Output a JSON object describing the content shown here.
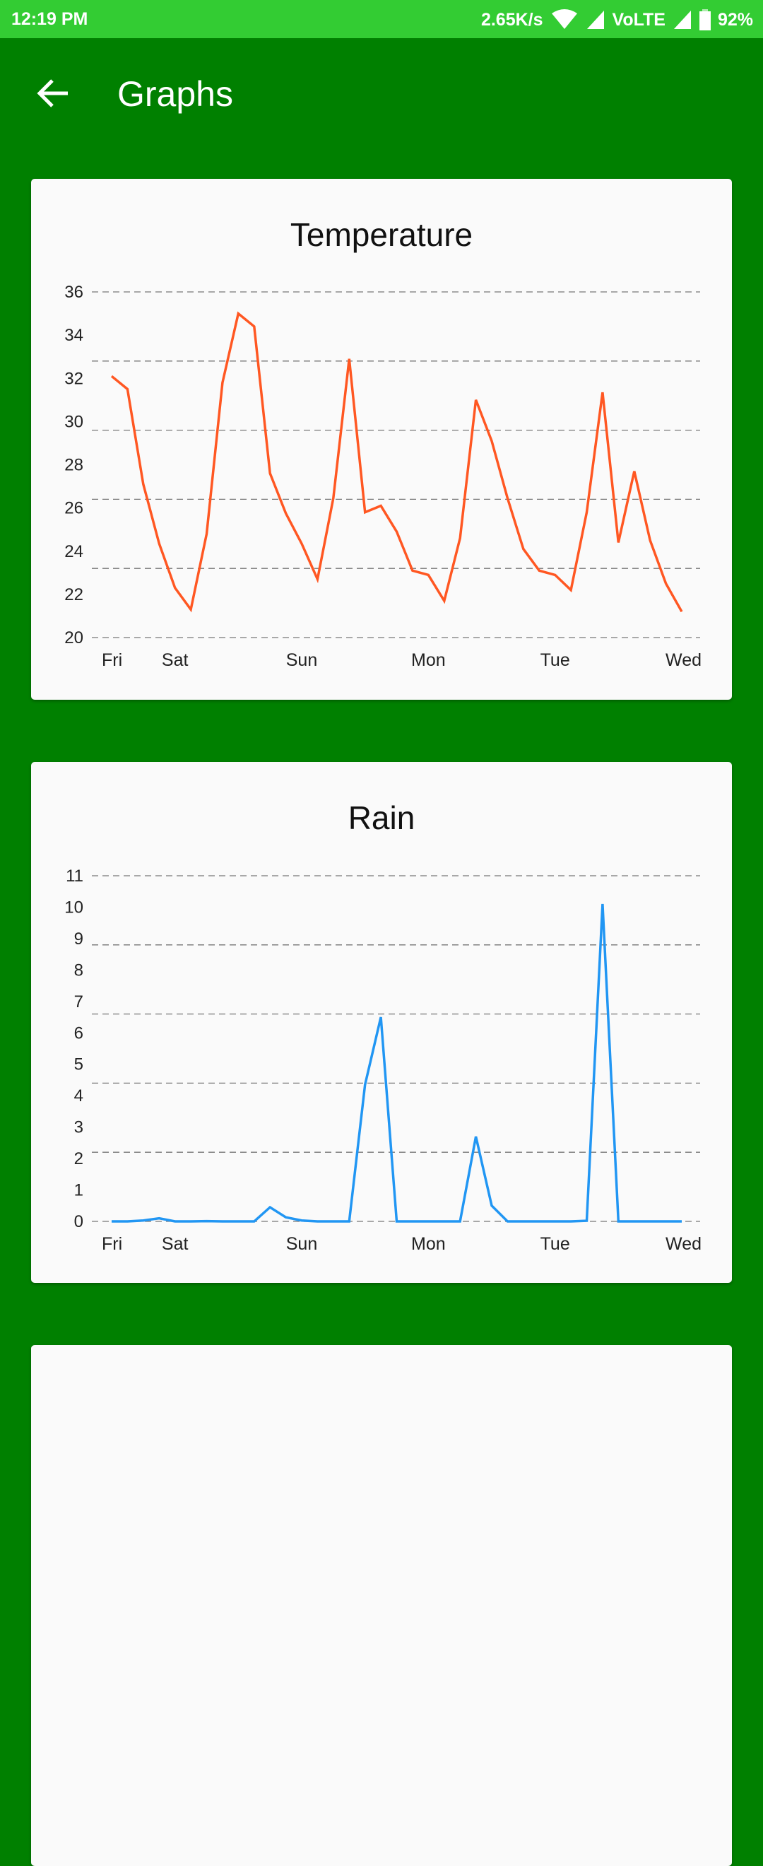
{
  "status_bar": {
    "time": "12:19 PM",
    "speed": "2.65K/s",
    "network": "VoLTE",
    "battery": "92%"
  },
  "app_bar": {
    "title": "Graphs",
    "back_icon": "arrow-back-icon"
  },
  "colors": {
    "status": "#33cc33",
    "appbar": "#008000",
    "temperature_line": "#ff5722",
    "rain_line": "#2196f3"
  },
  "chart_data": [
    {
      "type": "line",
      "title": "Temperature",
      "ylim": [
        20,
        36
      ],
      "yticks": [
        "20",
        "22",
        "24",
        "26",
        "28",
        "30",
        "32",
        "34",
        "36"
      ],
      "grid_lines": 6,
      "xlabels": [
        {
          "index": 0,
          "label": "Fri"
        },
        {
          "index": 4,
          "label": "Sat"
        },
        {
          "index": 12,
          "label": "Sun"
        },
        {
          "index": 20,
          "label": "Mon"
        },
        {
          "index": 28,
          "label": "Tue"
        },
        {
          "index": 36,
          "label": "Wed"
        }
      ],
      "values": [
        32.1,
        31.5,
        27.1,
        24.35,
        22.3,
        21.3,
        24.8,
        31.8,
        35.0,
        34.4,
        27.6,
        25.75,
        24.35,
        22.7,
        26.45,
        32.9,
        25.8,
        26.1,
        24.9,
        23.1,
        22.9,
        21.7,
        24.6,
        31.0,
        29.1,
        26.45,
        24.1,
        23.1,
        22.9,
        22.2,
        25.8,
        31.35,
        24.4,
        27.7,
        24.5,
        22.5,
        21.2
      ]
    },
    {
      "type": "line",
      "title": "Rain",
      "ylim": [
        0,
        11
      ],
      "yticks": [
        "0",
        "1",
        "2",
        "3",
        "4",
        "5",
        "6",
        "7",
        "8",
        "9",
        "10",
        "11"
      ],
      "grid_lines": 6,
      "xlabels": [
        {
          "index": 0,
          "label": "Fri"
        },
        {
          "index": 4,
          "label": "Sat"
        },
        {
          "index": 12,
          "label": "Sun"
        },
        {
          "index": 20,
          "label": "Mon"
        },
        {
          "index": 28,
          "label": "Tue"
        },
        {
          "index": 36,
          "label": "Wed"
        }
      ],
      "values": [
        0,
        0,
        0.03,
        0.1,
        0,
        0,
        0.01,
        0,
        0,
        0,
        0.45,
        0.13,
        0.03,
        0,
        0,
        0,
        4.35,
        6.5,
        0,
        0,
        0,
        0,
        0,
        2.7,
        0.5,
        0,
        0,
        0,
        0,
        0,
        0.02,
        10.1,
        0,
        0,
        0,
        0,
        0
      ]
    }
  ]
}
